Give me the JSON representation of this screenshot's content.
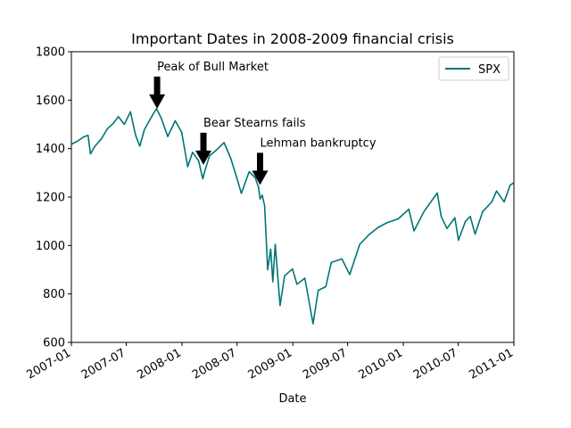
{
  "chart_data": {
    "type": "line",
    "title": "Important Dates in 2008-2009 financial crisis",
    "xlabel": "Date",
    "ylabel": "",
    "xlim": [
      "2007-01-01",
      "2011-01-01"
    ],
    "ylim": [
      600,
      1800
    ],
    "x_ticks": [
      "2007-01",
      "2007-07",
      "2008-01",
      "2008-07",
      "2009-01",
      "2009-07",
      "2010-01",
      "2010-07",
      "2011-01"
    ],
    "y_ticks": [
      600,
      800,
      1000,
      1200,
      1400,
      1600,
      1800
    ],
    "grid": false,
    "legend_position": "top-right",
    "series": [
      {
        "name": "SPX",
        "color": "#007575",
        "points": [
          [
            "2007-01-01",
            1418
          ],
          [
            "2007-01-20",
            1430
          ],
          [
            "2007-02-10",
            1448
          ],
          [
            "2007-02-25",
            1455
          ],
          [
            "2007-03-05",
            1378
          ],
          [
            "2007-03-20",
            1410
          ],
          [
            "2007-04-10",
            1440
          ],
          [
            "2007-04-30",
            1482
          ],
          [
            "2007-05-20",
            1505
          ],
          [
            "2007-06-05",
            1532
          ],
          [
            "2007-06-25",
            1500
          ],
          [
            "2007-07-15",
            1552
          ],
          [
            "2007-08-01",
            1455
          ],
          [
            "2007-08-15",
            1410
          ],
          [
            "2007-08-30",
            1478
          ],
          [
            "2007-09-20",
            1525
          ],
          [
            "2007-10-09",
            1565
          ],
          [
            "2007-10-25",
            1525
          ],
          [
            "2007-11-15",
            1450
          ],
          [
            "2007-12-10",
            1515
          ],
          [
            "2007-12-31",
            1468
          ],
          [
            "2008-01-20",
            1325
          ],
          [
            "2008-02-05",
            1385
          ],
          [
            "2008-02-25",
            1350
          ],
          [
            "2008-03-10",
            1275
          ],
          [
            "2008-03-15",
            1300
          ],
          [
            "2008-04-01",
            1370
          ],
          [
            "2008-04-20",
            1390
          ],
          [
            "2008-05-19",
            1425
          ],
          [
            "2008-06-10",
            1360
          ],
          [
            "2008-06-30",
            1280
          ],
          [
            "2008-07-15",
            1215
          ],
          [
            "2008-08-10",
            1305
          ],
          [
            "2008-08-30",
            1280
          ],
          [
            "2008-09-10",
            1240
          ],
          [
            "2008-09-15",
            1192
          ],
          [
            "2008-09-22",
            1208
          ],
          [
            "2008-09-30",
            1165
          ],
          [
            "2008-10-10",
            900
          ],
          [
            "2008-10-20",
            985
          ],
          [
            "2008-10-27",
            850
          ],
          [
            "2008-11-04",
            1005
          ],
          [
            "2008-11-20",
            752
          ],
          [
            "2008-12-05",
            875
          ],
          [
            "2008-12-31",
            903
          ],
          [
            "2009-01-15",
            840
          ],
          [
            "2009-02-10",
            865
          ],
          [
            "2009-03-09",
            677
          ],
          [
            "2009-03-26",
            815
          ],
          [
            "2009-04-20",
            830
          ],
          [
            "2009-05-08",
            930
          ],
          [
            "2009-06-12",
            945
          ],
          [
            "2009-07-08",
            880
          ],
          [
            "2009-08-10",
            1005
          ],
          [
            "2009-09-10",
            1045
          ],
          [
            "2009-10-10",
            1075
          ],
          [
            "2009-11-10",
            1095
          ],
          [
            "2009-12-15",
            1110
          ],
          [
            "2010-01-19",
            1150
          ],
          [
            "2010-02-05",
            1060
          ],
          [
            "2010-03-10",
            1140
          ],
          [
            "2010-04-23",
            1217
          ],
          [
            "2010-05-06",
            1120
          ],
          [
            "2010-05-25",
            1070
          ],
          [
            "2010-06-20",
            1115
          ],
          [
            "2010-07-02",
            1022
          ],
          [
            "2010-07-25",
            1100
          ],
          [
            "2010-08-10",
            1120
          ],
          [
            "2010-08-26",
            1047
          ],
          [
            "2010-09-20",
            1140
          ],
          [
            "2010-10-20",
            1180
          ],
          [
            "2010-11-05",
            1225
          ],
          [
            "2010-11-30",
            1180
          ],
          [
            "2010-12-20",
            1250
          ],
          [
            "2010-12-31",
            1258
          ]
        ]
      }
    ],
    "annotations": [
      {
        "label": "Peak of Bull Market",
        "date": "2007-10-11",
        "value": 1565
      },
      {
        "label": "Bear Stearns fails",
        "date": "2008-03-12",
        "value": 1333
      },
      {
        "label": "Lehman bankruptcy",
        "date": "2008-09-15",
        "value": 1250
      }
    ]
  }
}
